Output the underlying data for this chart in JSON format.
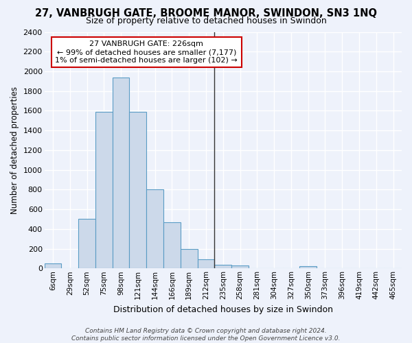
{
  "title": "27, VANBRUGH GATE, BROOME MANOR, SWINDON, SN3 1NQ",
  "subtitle": "Size of property relative to detached houses in Swindon",
  "xlabel": "Distribution of detached houses by size in Swindon",
  "ylabel": "Number of detached properties",
  "categories": [
    "6sqm",
    "29sqm",
    "52sqm",
    "75sqm",
    "98sqm",
    "121sqm",
    "144sqm",
    "166sqm",
    "189sqm",
    "212sqm",
    "235sqm",
    "258sqm",
    "281sqm",
    "304sqm",
    "327sqm",
    "350sqm",
    "373sqm",
    "396sqm",
    "419sqm",
    "442sqm",
    "465sqm"
  ],
  "values": [
    50,
    0,
    500,
    1590,
    1940,
    1590,
    800,
    470,
    195,
    90,
    35,
    30,
    0,
    0,
    0,
    20,
    0,
    0,
    0,
    0,
    0
  ],
  "bar_color": "#ccd9ea",
  "bar_edge_color": "#5a9cc5",
  "ylim": [
    0,
    2400
  ],
  "yticks": [
    0,
    200,
    400,
    600,
    800,
    1000,
    1200,
    1400,
    1600,
    1800,
    2000,
    2200,
    2400
  ],
  "vline_x_index": 10,
  "annotation_text": "27 VANBRUGH GATE: 226sqm\n← 99% of detached houses are smaller (7,177)\n1% of semi-detached houses are larger (102) →",
  "annotation_box_color": "#ffffff",
  "annotation_box_edge": "#cc0000",
  "footer": "Contains HM Land Registry data © Crown copyright and database right 2024.\nContains public sector information licensed under the Open Government Licence v3.0.",
  "bg_color": "#eef2fb",
  "grid_color": "#ffffff",
  "title_fontsize": 10.5,
  "subtitle_fontsize": 9
}
